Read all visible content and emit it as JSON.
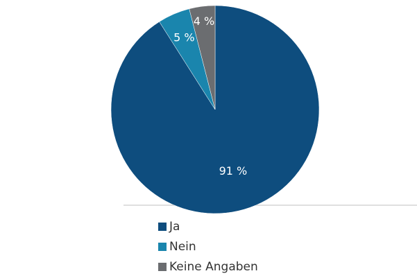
{
  "chart_data": {
    "type": "pie",
    "categories": [
      "Ja",
      "Nein",
      "Keine Angaben"
    ],
    "values": [
      91,
      5,
      4
    ],
    "value_labels": [
      "91 %",
      "5 %",
      "4 %"
    ],
    "colors": [
      "#0e4d7e",
      "#1a85ad",
      "#6b6d70"
    ]
  }
}
